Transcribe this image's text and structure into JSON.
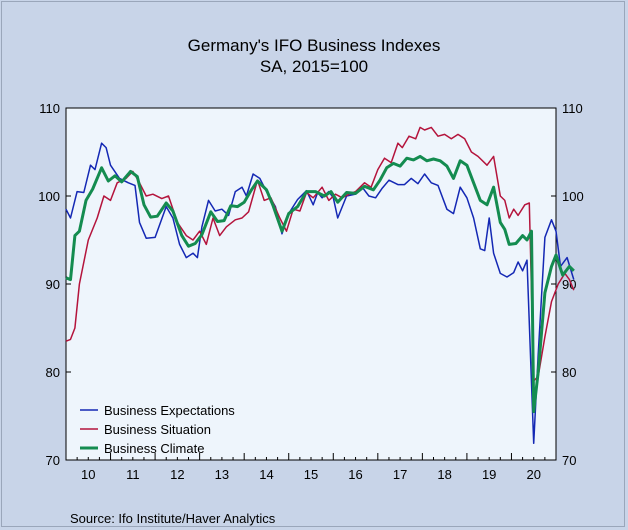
{
  "chart_data": {
    "type": "line",
    "title": "Germany's IFO Business Indexes",
    "subtitle": "SA, 2015=100",
    "source": "Source:    Ifo Institute/Haver Analytics",
    "ylim": [
      70,
      110
    ],
    "yticks": [
      70,
      80,
      90,
      100,
      110
    ],
    "xlim": [
      2010,
      2021
    ],
    "xtick_labels": [
      "10",
      "11",
      "12",
      "13",
      "14",
      "15",
      "16",
      "17",
      "18",
      "19",
      "20"
    ],
    "grid": false,
    "legend_position": "bottom-left",
    "colors": {
      "plot_bg": "#eef5fc",
      "page_bg": "#c8d4e8"
    },
    "series": [
      {
        "name": "Business Expectations",
        "color": "#1428b4",
        "points": [
          [
            2010.0,
            98.5
          ],
          [
            2010.1,
            97.5
          ],
          [
            2010.25,
            100.5
          ],
          [
            2010.4,
            100.4
          ],
          [
            2010.55,
            103.5
          ],
          [
            2010.65,
            103.0
          ],
          [
            2010.8,
            106.0
          ],
          [
            2010.9,
            105.5
          ],
          [
            2011.0,
            103.5
          ],
          [
            2011.2,
            102.0
          ],
          [
            2011.4,
            101.5
          ],
          [
            2011.55,
            101.2
          ],
          [
            2011.65,
            97.0
          ],
          [
            2011.8,
            95.2
          ],
          [
            2012.0,
            95.3
          ],
          [
            2012.25,
            98.8
          ],
          [
            2012.4,
            97.5
          ],
          [
            2012.55,
            94.5
          ],
          [
            2012.7,
            93.0
          ],
          [
            2012.85,
            93.5
          ],
          [
            2012.95,
            93.0
          ],
          [
            2013.05,
            96.5
          ],
          [
            2013.2,
            99.5
          ],
          [
            2013.35,
            98.3
          ],
          [
            2013.5,
            98.5
          ],
          [
            2013.65,
            97.8
          ],
          [
            2013.8,
            100.5
          ],
          [
            2013.95,
            101.0
          ],
          [
            2014.05,
            100.0
          ],
          [
            2014.2,
            102.5
          ],
          [
            2014.35,
            102.0
          ],
          [
            2014.5,
            100.5
          ],
          [
            2014.7,
            98.8
          ],
          [
            2014.85,
            95.7
          ],
          [
            2015.0,
            98.0
          ],
          [
            2015.2,
            99.6
          ],
          [
            2015.4,
            100.6
          ],
          [
            2015.55,
            99.0
          ],
          [
            2015.65,
            100.4
          ],
          [
            2015.75,
            99.8
          ],
          [
            2015.9,
            100.5
          ],
          [
            2016.0,
            99.8
          ],
          [
            2016.1,
            97.5
          ],
          [
            2016.3,
            100.0
          ],
          [
            2016.5,
            100.2
          ],
          [
            2016.65,
            101.0
          ],
          [
            2016.8,
            100.0
          ],
          [
            2016.95,
            99.8
          ],
          [
            2017.1,
            100.9
          ],
          [
            2017.25,
            101.8
          ],
          [
            2017.45,
            101.3
          ],
          [
            2017.6,
            101.3
          ],
          [
            2017.75,
            102.0
          ],
          [
            2017.9,
            101.4
          ],
          [
            2018.05,
            102.5
          ],
          [
            2018.2,
            101.5
          ],
          [
            2018.35,
            101.2
          ],
          [
            2018.55,
            98.5
          ],
          [
            2018.7,
            98.0
          ],
          [
            2018.85,
            101.0
          ],
          [
            2019.0,
            99.8
          ],
          [
            2019.15,
            97.5
          ],
          [
            2019.3,
            94.0
          ],
          [
            2019.4,
            93.8
          ],
          [
            2019.5,
            97.5
          ],
          [
            2019.6,
            93.5
          ],
          [
            2019.75,
            91.2
          ],
          [
            2019.9,
            90.8
          ],
          [
            2020.05,
            91.3
          ],
          [
            2020.15,
            92.5
          ],
          [
            2020.25,
            91.5
          ],
          [
            2020.35,
            92.7
          ],
          [
            2020.5,
            71.9
          ],
          [
            2020.6,
            82.0
          ],
          [
            2020.75,
            95.3
          ],
          [
            2020.9,
            97.3
          ],
          [
            2021.0,
            96.0
          ],
          [
            2021.1,
            92.0
          ],
          [
            2021.25,
            93.0
          ],
          [
            2021.4,
            90.5
          ]
        ]
      },
      {
        "name": "Business Situation",
        "color": "#b4143c",
        "points": [
          [
            2010.0,
            83.5
          ],
          [
            2010.1,
            83.7
          ],
          [
            2010.2,
            85.0
          ],
          [
            2010.3,
            90.0
          ],
          [
            2010.5,
            95.0
          ],
          [
            2010.7,
            97.5
          ],
          [
            2010.85,
            100.0
          ],
          [
            2011.0,
            99.5
          ],
          [
            2011.15,
            101.5
          ],
          [
            2011.35,
            102.0
          ],
          [
            2011.5,
            102.8
          ],
          [
            2011.65,
            101.5
          ],
          [
            2011.8,
            100.0
          ],
          [
            2011.95,
            100.2
          ],
          [
            2012.15,
            99.7
          ],
          [
            2012.3,
            100.0
          ],
          [
            2012.5,
            97.0
          ],
          [
            2012.7,
            95.5
          ],
          [
            2012.85,
            95.0
          ],
          [
            2013.0,
            96.0
          ],
          [
            2013.15,
            94.5
          ],
          [
            2013.3,
            97.5
          ],
          [
            2013.45,
            95.5
          ],
          [
            2013.6,
            96.5
          ],
          [
            2013.8,
            97.3
          ],
          [
            2013.95,
            97.5
          ],
          [
            2014.1,
            98.2
          ],
          [
            2014.3,
            101.8
          ],
          [
            2014.45,
            99.5
          ],
          [
            2014.6,
            99.8
          ],
          [
            2014.8,
            97.5
          ],
          [
            2014.95,
            96.0
          ],
          [
            2015.1,
            98.5
          ],
          [
            2015.25,
            98.3
          ],
          [
            2015.4,
            100.4
          ],
          [
            2015.55,
            99.8
          ],
          [
            2015.75,
            101.0
          ],
          [
            2015.9,
            99.5
          ],
          [
            2016.05,
            100.2
          ],
          [
            2016.2,
            99.8
          ],
          [
            2016.35,
            100.2
          ],
          [
            2016.5,
            100.5
          ],
          [
            2016.7,
            101.5
          ],
          [
            2016.85,
            101.0
          ],
          [
            2017.0,
            103.0
          ],
          [
            2017.15,
            104.3
          ],
          [
            2017.3,
            103.8
          ],
          [
            2017.45,
            106.0
          ],
          [
            2017.55,
            105.5
          ],
          [
            2017.7,
            106.8
          ],
          [
            2017.85,
            106.5
          ],
          [
            2017.95,
            107.8
          ],
          [
            2018.05,
            107.5
          ],
          [
            2018.2,
            107.8
          ],
          [
            2018.35,
            106.8
          ],
          [
            2018.5,
            107.0
          ],
          [
            2018.65,
            106.5
          ],
          [
            2018.8,
            107.0
          ],
          [
            2018.95,
            106.5
          ],
          [
            2019.1,
            105.0
          ],
          [
            2019.25,
            104.5
          ],
          [
            2019.45,
            103.5
          ],
          [
            2019.6,
            104.5
          ],
          [
            2019.75,
            100.0
          ],
          [
            2019.85,
            99.5
          ],
          [
            2019.95,
            97.5
          ],
          [
            2020.05,
            98.5
          ],
          [
            2020.15,
            97.8
          ],
          [
            2020.3,
            99.0
          ],
          [
            2020.4,
            99.2
          ],
          [
            2020.5,
            79.0
          ],
          [
            2020.6,
            79.5
          ],
          [
            2020.75,
            84.0
          ],
          [
            2020.9,
            88.0
          ],
          [
            2021.05,
            90.0
          ],
          [
            2021.2,
            91.2
          ],
          [
            2021.3,
            90.5
          ],
          [
            2021.4,
            89.3
          ]
        ]
      },
      {
        "name": "Business Climate",
        "color": "#148c50",
        "points": [
          [
            2010.0,
            90.7
          ],
          [
            2010.1,
            90.5
          ],
          [
            2010.2,
            95.5
          ],
          [
            2010.3,
            96.0
          ],
          [
            2010.45,
            99.5
          ],
          [
            2010.6,
            100.8
          ],
          [
            2010.8,
            103.2
          ],
          [
            2010.95,
            101.7
          ],
          [
            2011.1,
            102.3
          ],
          [
            2011.25,
            101.6
          ],
          [
            2011.45,
            102.8
          ],
          [
            2011.6,
            102.2
          ],
          [
            2011.75,
            99.0
          ],
          [
            2011.9,
            97.6
          ],
          [
            2012.05,
            97.7
          ],
          [
            2012.25,
            99.2
          ],
          [
            2012.4,
            98.3
          ],
          [
            2012.6,
            95.5
          ],
          [
            2012.75,
            94.3
          ],
          [
            2012.9,
            94.6
          ],
          [
            2013.05,
            95.6
          ],
          [
            2013.25,
            98.2
          ],
          [
            2013.4,
            97.1
          ],
          [
            2013.55,
            97.2
          ],
          [
            2013.7,
            98.9
          ],
          [
            2013.85,
            98.8
          ],
          [
            2014.0,
            99.3
          ],
          [
            2014.15,
            100.6
          ],
          [
            2014.3,
            101.7
          ],
          [
            2014.5,
            100.7
          ],
          [
            2014.65,
            98.9
          ],
          [
            2014.85,
            96.0
          ],
          [
            2015.0,
            98.0
          ],
          [
            2015.2,
            98.8
          ],
          [
            2015.4,
            100.5
          ],
          [
            2015.6,
            100.5
          ],
          [
            2015.8,
            100.0
          ],
          [
            2015.95,
            100.5
          ],
          [
            2016.1,
            99.3
          ],
          [
            2016.3,
            100.4
          ],
          [
            2016.5,
            100.3
          ],
          [
            2016.7,
            101.1
          ],
          [
            2016.9,
            100.7
          ],
          [
            2017.05,
            101.8
          ],
          [
            2017.2,
            103.2
          ],
          [
            2017.35,
            103.7
          ],
          [
            2017.5,
            103.4
          ],
          [
            2017.65,
            104.3
          ],
          [
            2017.8,
            104.1
          ],
          [
            2017.95,
            104.5
          ],
          [
            2018.1,
            104.0
          ],
          [
            2018.25,
            104.2
          ],
          [
            2018.4,
            104.0
          ],
          [
            2018.55,
            103.4
          ],
          [
            2018.7,
            102.0
          ],
          [
            2018.85,
            104.0
          ],
          [
            2019.0,
            103.5
          ],
          [
            2019.15,
            101.5
          ],
          [
            2019.3,
            99.5
          ],
          [
            2019.45,
            99.0
          ],
          [
            2019.6,
            101.0
          ],
          [
            2019.75,
            97.0
          ],
          [
            2019.85,
            96.2
          ],
          [
            2019.95,
            94.5
          ],
          [
            2020.1,
            94.6
          ],
          [
            2020.25,
            95.5
          ],
          [
            2020.35,
            95.0
          ],
          [
            2020.45,
            96.0
          ],
          [
            2020.5,
            75.5
          ],
          [
            2020.6,
            80.0
          ],
          [
            2020.75,
            89.0
          ],
          [
            2020.9,
            92.0
          ],
          [
            2021.0,
            93.3
          ],
          [
            2021.15,
            91.0
          ],
          [
            2021.3,
            92.0
          ],
          [
            2021.4,
            91.5
          ]
        ]
      }
    ]
  }
}
